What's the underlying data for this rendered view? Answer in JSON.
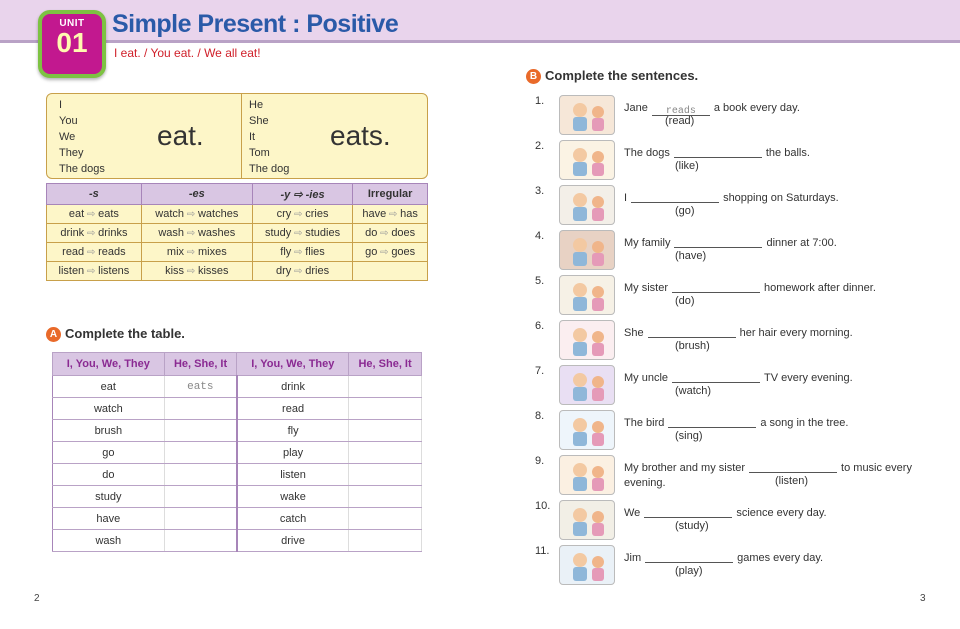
{
  "unit": {
    "label": "UNIT",
    "number": "01"
  },
  "title": "Simple Present : Positive",
  "subtitle": "I eat. / You eat. / We all eat!",
  "verb_box": {
    "left_subjects": [
      "I",
      "You",
      "We",
      "They",
      "The dogs"
    ],
    "left_verb": "eat.",
    "right_subjects": [
      "He",
      "She",
      "It",
      "Tom",
      "The dog"
    ],
    "right_verb": "eats."
  },
  "rules": {
    "headers": [
      "-s",
      "-es",
      "-y ⇨ -ies",
      "Irregular"
    ],
    "rows": [
      [
        [
          "eat",
          "eats"
        ],
        [
          "watch",
          "watches"
        ],
        [
          "cry",
          "cries"
        ],
        [
          "have",
          "has"
        ]
      ],
      [
        [
          "drink",
          "drinks"
        ],
        [
          "wash",
          "washes"
        ],
        [
          "study",
          "studies"
        ],
        [
          "do",
          "does"
        ]
      ],
      [
        [
          "read",
          "reads"
        ],
        [
          "mix",
          "mixes"
        ],
        [
          "fly",
          "flies"
        ],
        [
          "go",
          "goes"
        ]
      ],
      [
        [
          "listen",
          "listens"
        ],
        [
          "kiss",
          "kisses"
        ],
        [
          "dry",
          "dries"
        ],
        [
          "",
          ""
        ]
      ]
    ]
  },
  "section_a": {
    "letter": "A",
    "title": "Complete the table."
  },
  "table_a": {
    "headers": [
      "I, You, We, They",
      "He, She, It",
      "I, You, We, They",
      "He, She, It"
    ],
    "rows": [
      [
        "eat",
        "eats",
        "drink",
        ""
      ],
      [
        "watch",
        "",
        "read",
        ""
      ],
      [
        "brush",
        "",
        "fly",
        ""
      ],
      [
        "go",
        "",
        "play",
        ""
      ],
      [
        "do",
        "",
        "listen",
        ""
      ],
      [
        "study",
        "",
        "wake",
        ""
      ],
      [
        "have",
        "",
        "catch",
        ""
      ],
      [
        "wash",
        "",
        "drive",
        ""
      ]
    ]
  },
  "section_b": {
    "letter": "B",
    "title": "Complete the sentences."
  },
  "sentences": [
    {
      "n": "1.",
      "before": "Jane",
      "answer": "reads",
      "after": "a book every day.",
      "hint": "(read)",
      "bg": "#f6e7d8"
    },
    {
      "n": "2.",
      "before": "The dogs",
      "answer": "",
      "after": "the balls.",
      "hint": "(like)",
      "bg": "#fbf3e4"
    },
    {
      "n": "3.",
      "before": "I",
      "answer": "",
      "after": "shopping on Saturdays.",
      "hint": "(go)",
      "bg": "#f3efe8"
    },
    {
      "n": "4.",
      "before": "My family",
      "answer": "",
      "after": "dinner at 7:00.",
      "hint": "(have)",
      "bg": "#e8d2c4"
    },
    {
      "n": "5.",
      "before": "My sister",
      "answer": "",
      "after": "homework after dinner.",
      "hint": "(do)",
      "bg": "#f6f1e6"
    },
    {
      "n": "6.",
      "before": "She",
      "answer": "",
      "after": "her hair every morning.",
      "hint": "(brush)",
      "bg": "#fbeef0"
    },
    {
      "n": "7.",
      "before": "My uncle",
      "answer": "",
      "after": "TV every evening.",
      "hint": "(watch)",
      "bg": "#e9dff3"
    },
    {
      "n": "8.",
      "before": "The bird",
      "answer": "",
      "after": "a song in the tree.",
      "hint": "(sing)",
      "bg": "#eef5fb"
    },
    {
      "n": "9.",
      "before": "My brother and my sister",
      "answer": "",
      "after": "to music every evening.",
      "hint": "(listen)",
      "bg": "#fbf0e2"
    },
    {
      "n": "10.",
      "before": "We",
      "answer": "",
      "after": "science every day.",
      "hint": "(study)",
      "bg": "#f2efe6"
    },
    {
      "n": "11.",
      "before": "Jim",
      "answer": "",
      "after": "games every day.",
      "hint": "(play)",
      "bg": "#eaf1f7"
    }
  ],
  "page_left": "2",
  "page_right": "3",
  "colors": {
    "header_bg": "#e9d4ec",
    "title": "#2a5aa8",
    "badge": "#c2188f",
    "badge_border": "#7dc242",
    "accent": "#e96a2a",
    "table_head": "#d9c6e3",
    "rule_bg": "#fdf6c8"
  }
}
